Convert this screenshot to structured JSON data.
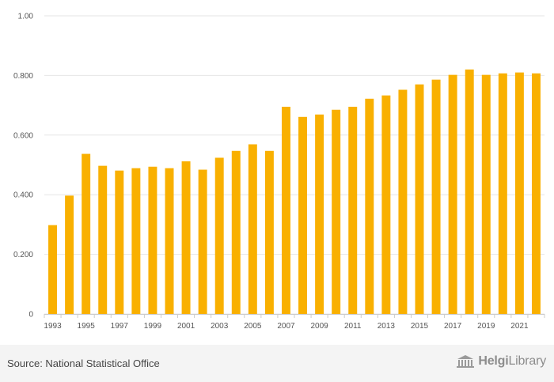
{
  "chart_data": {
    "type": "bar",
    "categories": [
      "1993",
      "1994",
      "1995",
      "1996",
      "1997",
      "1998",
      "1999",
      "2000",
      "2001",
      "2002",
      "2003",
      "2004",
      "2005",
      "2006",
      "2007",
      "2008",
      "2009",
      "2010",
      "2011",
      "2012",
      "2013",
      "2014",
      "2015",
      "2016",
      "2017",
      "2018",
      "2019",
      "2020",
      "2021",
      "2022"
    ],
    "values": [
      0.298,
      0.397,
      0.537,
      0.497,
      0.481,
      0.489,
      0.494,
      0.489,
      0.512,
      0.484,
      0.524,
      0.547,
      0.569,
      0.547,
      0.695,
      0.661,
      0.669,
      0.685,
      0.695,
      0.722,
      0.733,
      0.752,
      0.77,
      0.786,
      0.802,
      0.82,
      0.802,
      0.807,
      0.81,
      0.807
    ],
    "x_tick_labels": [
      "1993",
      "1995",
      "1997",
      "1999",
      "2001",
      "2003",
      "2005",
      "2007",
      "2009",
      "2011",
      "2013",
      "2015",
      "2017",
      "2019",
      "2021"
    ],
    "y_ticks": [
      0,
      0.2,
      0.4,
      0.6,
      0.8,
      1.0
    ],
    "y_tick_labels": [
      "0",
      "0.200",
      "0.400",
      "0.600",
      "0.800",
      "1.00"
    ],
    "ylim": [
      0,
      1.0
    ],
    "grid": true,
    "bar_color": "#f9b000",
    "title": "",
    "xlabel": "",
    "ylabel": ""
  },
  "footer": {
    "source": "Source: National Statistical Office",
    "brand_prefix": "Helgi",
    "brand_suffix": "Library",
    "brand_icon": "library-building-icon"
  }
}
